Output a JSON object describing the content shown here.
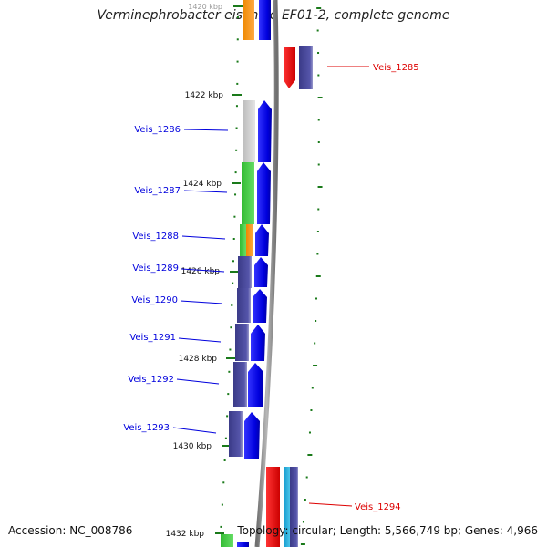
{
  "title": "Verminephrobacter eiseniae EF01-2, complete genome",
  "footer": {
    "accession": "Accession: NC_008786",
    "summary": "Topology: circular; Length: 5,566,749 bp; Genes: 4,966"
  },
  "ticks": [
    {
      "label": "1420 kbp"
    },
    {
      "label": "1422 kbp"
    },
    {
      "label": "1424 kbp"
    },
    {
      "label": "1426 kbp"
    },
    {
      "label": "1428 kbp"
    },
    {
      "label": "1430 kbp"
    },
    {
      "label": "1432 kbp"
    }
  ],
  "genes_reverse": [
    {
      "label": "Veis_1286",
      "color": "#0000dd"
    },
    {
      "label": "Veis_1287",
      "color": "#0000dd"
    },
    {
      "label": "Veis_1288",
      "color": "#0000dd"
    },
    {
      "label": "Veis_1289",
      "color": "#0000dd"
    },
    {
      "label": "Veis_1290",
      "color": "#0000dd"
    },
    {
      "label": "Veis_1291",
      "color": "#0000dd"
    },
    {
      "label": "Veis_1292",
      "color": "#0000dd"
    },
    {
      "label": "Veis_1293",
      "color": "#0000dd"
    }
  ],
  "genes_forward": [
    {
      "label": "Veis_1285",
      "color": "#dd0000"
    },
    {
      "label": "Veis_1294",
      "color": "#dd0000"
    }
  ],
  "colors": {
    "reverse_gene": "#0000dd",
    "forward_gene": "#dd0000",
    "tick": "#1a7a1a",
    "backbone": "#909090",
    "cog_gray": "#c8c8c8",
    "cog_green": "#44cc44",
    "cog_orange": "#ff9922",
    "cog_purple": "#4a4a99",
    "cog_red": "#ee1111",
    "cog_cyan": "#22aadd"
  }
}
